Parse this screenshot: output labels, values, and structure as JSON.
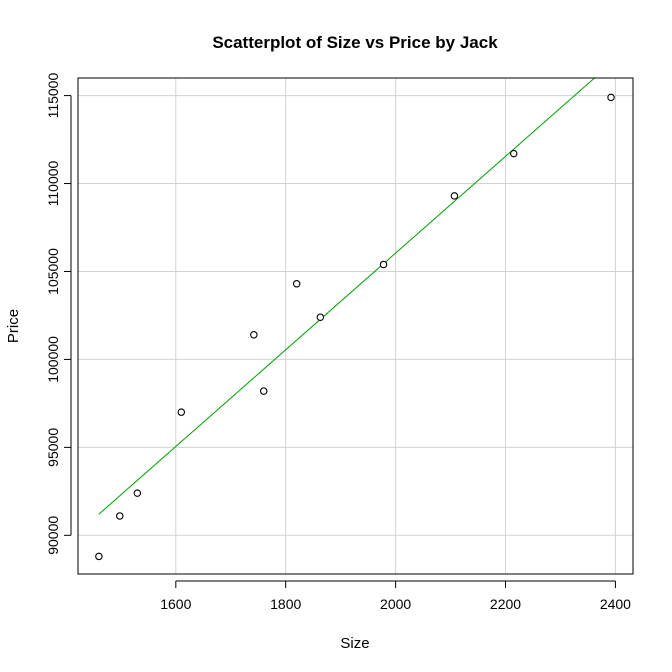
{
  "chart_data": {
    "type": "scatter",
    "title": "Scatterplot of Size vs Price by Jack",
    "xlabel": "Size",
    "ylabel": "Price",
    "xlim": [
      1422,
      2432
    ],
    "ylim": [
      87800,
      116000
    ],
    "x_ticks": [
      1600,
      1800,
      2000,
      2200,
      2400
    ],
    "y_ticks": [
      90000,
      95000,
      100000,
      105000,
      110000,
      115000
    ],
    "grid": true,
    "points": [
      {
        "x": 1460,
        "y": 88800
      },
      {
        "x": 1498,
        "y": 91100
      },
      {
        "x": 1530,
        "y": 92400
      },
      {
        "x": 1610,
        "y": 97000
      },
      {
        "x": 1742,
        "y": 101400
      },
      {
        "x": 1760,
        "y": 98200
      },
      {
        "x": 1820,
        "y": 104300
      },
      {
        "x": 1863,
        "y": 102400
      },
      {
        "x": 1978,
        "y": 105400
      },
      {
        "x": 2107,
        "y": 109300
      },
      {
        "x": 2215,
        "y": 111700
      },
      {
        "x": 2392,
        "y": 114900
      }
    ],
    "fit_line": {
      "start": {
        "x": 1460,
        "y": 91200
      },
      "end": {
        "x": 2362,
        "y": 116000
      },
      "color": "#00a000"
    }
  }
}
